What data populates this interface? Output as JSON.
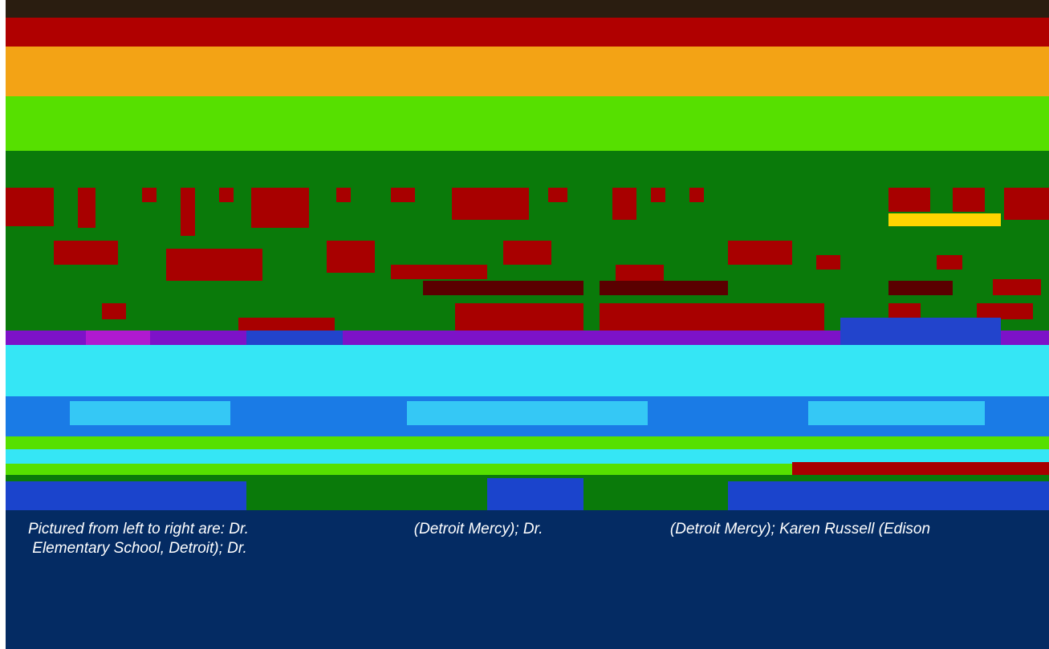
{
  "photo": {
    "description_icon": "group-photo"
  },
  "caption": {
    "line_1": "Pictured from left to right are: Dr.                                       (Detroit Mercy); Dr.                              (Detroit Mercy); Karen Russell (Edison",
    "line_2": " Elementary School, Detroit); Dr."
  },
  "colors": {
    "caption_background": "#042b63",
    "caption_text": "#ffffff"
  }
}
